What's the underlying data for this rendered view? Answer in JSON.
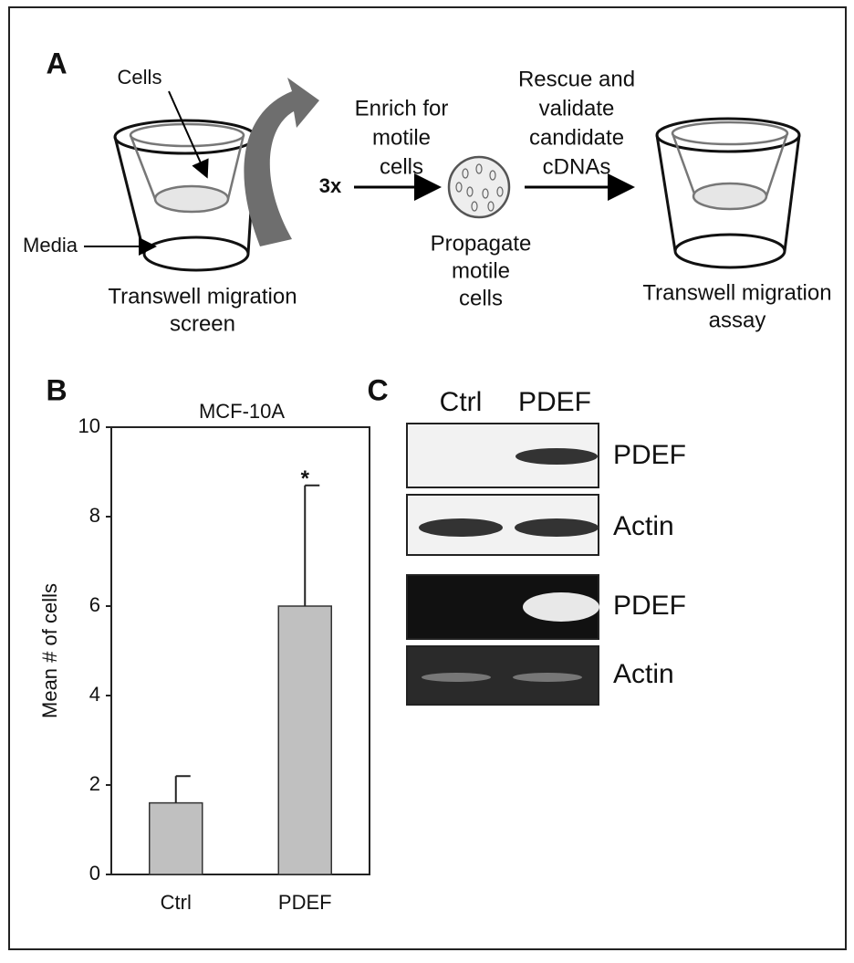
{
  "panel_a": {
    "label": "A",
    "cells": "Cells",
    "media": "Media",
    "repeat": "3x",
    "screen_caption": [
      "Transwell migration",
      "screen"
    ],
    "enrich": [
      "Enrich for",
      "motile",
      "cells"
    ],
    "propagate": [
      "Propagate",
      "motile",
      "cells"
    ],
    "rescue": [
      "Rescue and",
      "validate",
      "candidate",
      "cDNAs"
    ],
    "assay_caption": [
      "Transwell migration",
      "assay"
    ]
  },
  "chart_data": {
    "type": "bar",
    "panel_label": "B",
    "title": "MCF-10A",
    "y_label": "Mean # of cells",
    "categories": [
      "Ctrl",
      "PDEF"
    ],
    "values": [
      1.6,
      6.0
    ],
    "errors": [
      0.6,
      2.7
    ],
    "annotation": "*",
    "color": "#c0c0c0",
    "ylim": [
      0,
      10
    ],
    "yticks": [
      0,
      2,
      4,
      6,
      8,
      10
    ]
  },
  "panel_c": {
    "label": "C",
    "columns": [
      "Ctrl",
      "PDEF"
    ],
    "rows": [
      "PDEF",
      "Actin",
      "PDEF",
      "Actin"
    ]
  }
}
